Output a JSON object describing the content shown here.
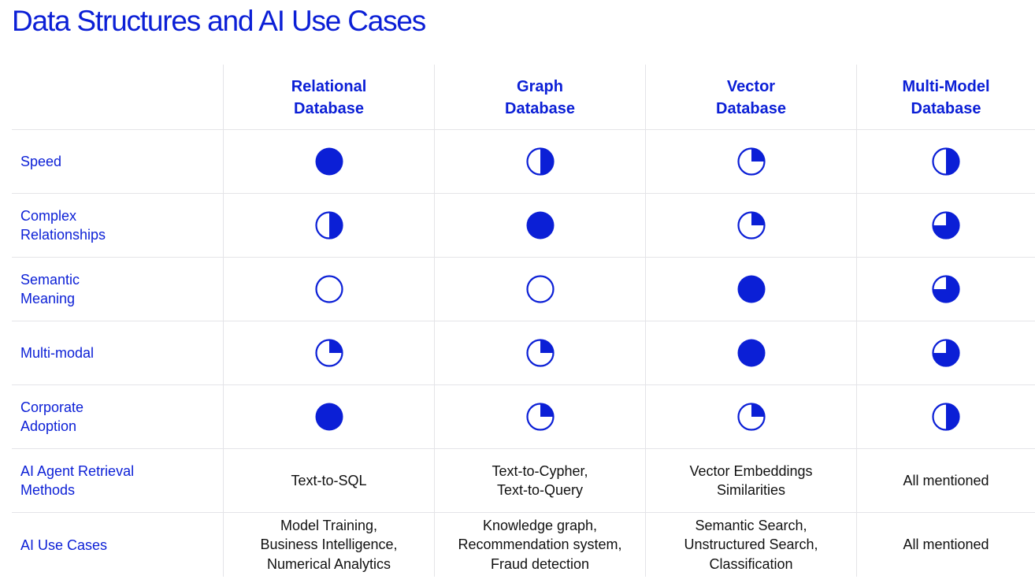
{
  "page": {
    "title": "Data Structures and AI Use Cases"
  },
  "colors": {
    "accent": "#0b1fd6",
    "text": "#111111",
    "divider": "#e4e4e8"
  },
  "columns": [
    {
      "name": "Relational\nDatabase"
    },
    {
      "name": "Graph\nDatabase"
    },
    {
      "name": "Vector\nDatabase"
    },
    {
      "name": "Multi-Model\nDatabase"
    }
  ],
  "rating_rows": [
    {
      "label": "Speed",
      "ratings": [
        1.0,
        0.5,
        0.25,
        0.5
      ]
    },
    {
      "label": "Complex\nRelationships",
      "ratings": [
        0.5,
        1.0,
        0.25,
        0.75
      ]
    },
    {
      "label": "Semantic\nMeaning",
      "ratings": [
        0.0,
        0.0,
        1.0,
        0.75
      ]
    },
    {
      "label": "Multi-modal",
      "ratings": [
        0.25,
        0.25,
        1.0,
        0.75
      ]
    },
    {
      "label": "Corporate\nAdoption",
      "ratings": [
        1.0,
        0.25,
        0.25,
        0.5
      ]
    }
  ],
  "text_rows": [
    {
      "label": "AI Agent Retrieval\nMethods",
      "values": [
        "Text-to-SQL",
        "Text-to-Cypher,\nText-to-Query",
        "Vector Embeddings\nSimilarities",
        "All mentioned"
      ]
    },
    {
      "label": "AI Use Cases",
      "values": [
        "Model Training,\nBusiness Intelligence,\nNumerical Analytics",
        "Knowledge graph,\nRecommendation system,\nFraud detection",
        "Semantic Search,\nUnstructured Search,\nClassification",
        "All mentioned"
      ]
    }
  ]
}
